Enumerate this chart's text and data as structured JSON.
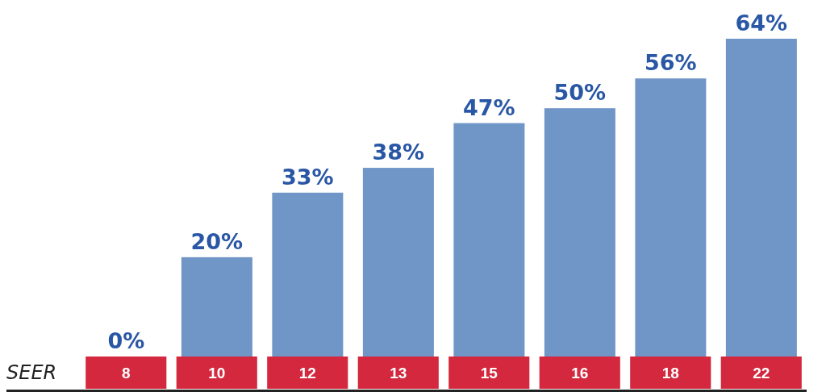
{
  "chart_data": {
    "type": "bar",
    "xlabel": "SEER",
    "categories": [
      "8",
      "10",
      "12",
      "13",
      "15",
      "16",
      "18",
      "22"
    ],
    "values": [
      0,
      20,
      33,
      38,
      47,
      50,
      56,
      64
    ],
    "value_labels": [
      "0%",
      "20%",
      "33%",
      "38%",
      "47%",
      "50%",
      "56%",
      "64%"
    ],
    "color": "#7096c8",
    "grid": false
  }
}
